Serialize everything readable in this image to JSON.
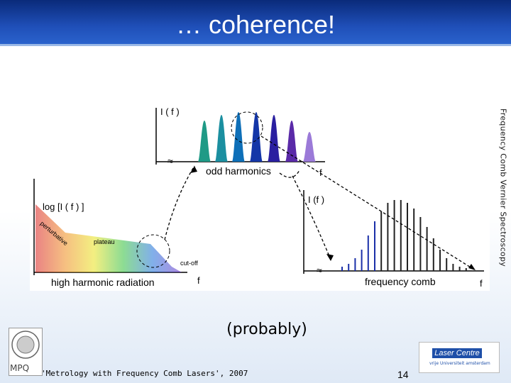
{
  "slide": {
    "title": "… coherence!",
    "side_label": "Frequency Comb Vernier Spectroscopy",
    "caption": "(probably)",
    "footer": "'Metrology with Frequency Comb Lasers', 2007",
    "page_number": "14",
    "logos": {
      "mpq": "MPQ",
      "laser_centre": "Laser Centre",
      "laser_sub": "vrije Universiteit amsterdam"
    }
  },
  "diagram": {
    "top_panel": {
      "y_label": "I ( f )",
      "x_label": "odd harmonics",
      "f_label": "f"
    },
    "left_panel": {
      "y_label": "log [I ( f ) ]",
      "perturbative": "perturbative",
      "plateau": "plateau",
      "cutoff": "cut-off",
      "x_label": "high harmonic radiation",
      "f_label": "f"
    },
    "right_panel": {
      "y_label": "I (f )",
      "x_label": "frequency comb",
      "f_label": "f"
    },
    "harmonic_colors": [
      "#1f9a86",
      "#1b8fa0",
      "#0e6fb8",
      "#1436a8",
      "#2a1fa0",
      "#5a2aa8",
      "#9b7ad8"
    ]
  }
}
